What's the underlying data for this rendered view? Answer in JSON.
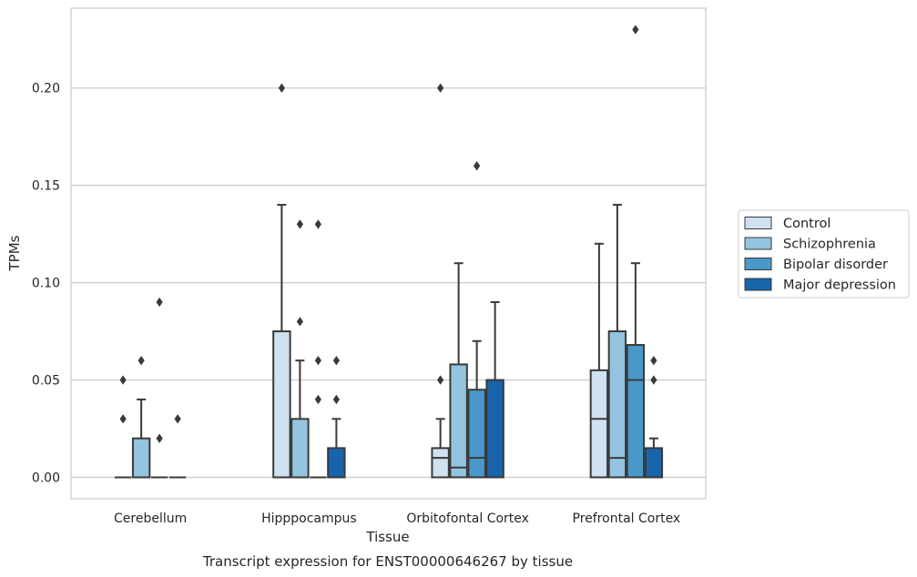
{
  "chart_data": {
    "type": "box",
    "title": "Transcript expression for ENST00000646267 by tissue",
    "xlabel": "Tissue",
    "ylabel": "TPMs",
    "ylim": [
      -0.011,
      0.241
    ],
    "yticks": [
      "0.00",
      "0.05",
      "0.10",
      "0.15",
      "0.20"
    ],
    "grid": "horizontal",
    "legend_position": "right",
    "categories": [
      "Cerebellum",
      "Hipppocampus",
      "Orbitofontal Cortex",
      "Prefrontal Cortex"
    ],
    "series": [
      {
        "name": "Control",
        "color": "#d0e1f2",
        "boxes": [
          {
            "q1": 0,
            "median": 0,
            "q3": 0,
            "whisker_low": 0,
            "whisker_high": 0,
            "outliers": [
              0.03,
              0.05
            ]
          },
          {
            "q1": 0,
            "median": 0,
            "q3": 0.075,
            "whisker_low": 0,
            "whisker_high": 0.14,
            "outliers": [
              0.2
            ]
          },
          {
            "q1": 0,
            "median": 0.01,
            "q3": 0.015,
            "whisker_low": 0,
            "whisker_high": 0.03,
            "outliers": [
              0.05,
              0.2
            ]
          },
          {
            "q1": 0,
            "median": 0.03,
            "q3": 0.055,
            "whisker_low": 0,
            "whisker_high": 0.12,
            "outliers": []
          }
        ]
      },
      {
        "name": "Schizophrenia",
        "color": "#94c4df",
        "boxes": [
          {
            "q1": 0,
            "median": 0,
            "q3": 0.02,
            "whisker_low": 0,
            "whisker_high": 0.04,
            "outliers": [
              0.06
            ]
          },
          {
            "q1": 0,
            "median": 0,
            "q3": 0.03,
            "whisker_low": 0,
            "whisker_high": 0.06,
            "outliers": [
              0.08,
              0.13
            ]
          },
          {
            "q1": 0,
            "median": 0.005,
            "q3": 0.058,
            "whisker_low": 0,
            "whisker_high": 0.11,
            "outliers": []
          },
          {
            "q1": 0,
            "median": 0.01,
            "q3": 0.075,
            "whisker_low": 0,
            "whisker_high": 0.14,
            "outliers": []
          }
        ]
      },
      {
        "name": "Bipolar disorder",
        "color": "#4a98c9",
        "boxes": [
          {
            "q1": 0,
            "median": 0,
            "q3": 0,
            "whisker_low": 0,
            "whisker_high": 0,
            "outliers": [
              0.02,
              0.09
            ]
          },
          {
            "q1": 0,
            "median": 0,
            "q3": 0,
            "whisker_low": 0,
            "whisker_high": 0,
            "outliers": [
              0.04,
              0.06,
              0.13
            ]
          },
          {
            "q1": 0,
            "median": 0.01,
            "q3": 0.045,
            "whisker_low": 0,
            "whisker_high": 0.07,
            "outliers": [
              0.16
            ]
          },
          {
            "q1": 0,
            "median": 0.05,
            "q3": 0.068,
            "whisker_low": 0,
            "whisker_high": 0.11,
            "outliers": [
              0.23
            ]
          }
        ]
      },
      {
        "name": "Major depression",
        "color": "#1764ab",
        "boxes": [
          {
            "q1": 0,
            "median": 0,
            "q3": 0,
            "whisker_low": 0,
            "whisker_high": 0,
            "outliers": [
              0.03
            ]
          },
          {
            "q1": 0,
            "median": 0,
            "q3": 0.015,
            "whisker_low": 0,
            "whisker_high": 0.03,
            "outliers": [
              0.04,
              0.06
            ]
          },
          {
            "q1": 0,
            "median": 0,
            "q3": 0.05,
            "whisker_low": 0,
            "whisker_high": 0.09,
            "outliers": []
          },
          {
            "q1": 0,
            "median": 0,
            "q3": 0.015,
            "whisker_low": 0,
            "whisker_high": 0.02,
            "outliers": [
              0.05,
              0.06
            ]
          }
        ]
      }
    ]
  }
}
